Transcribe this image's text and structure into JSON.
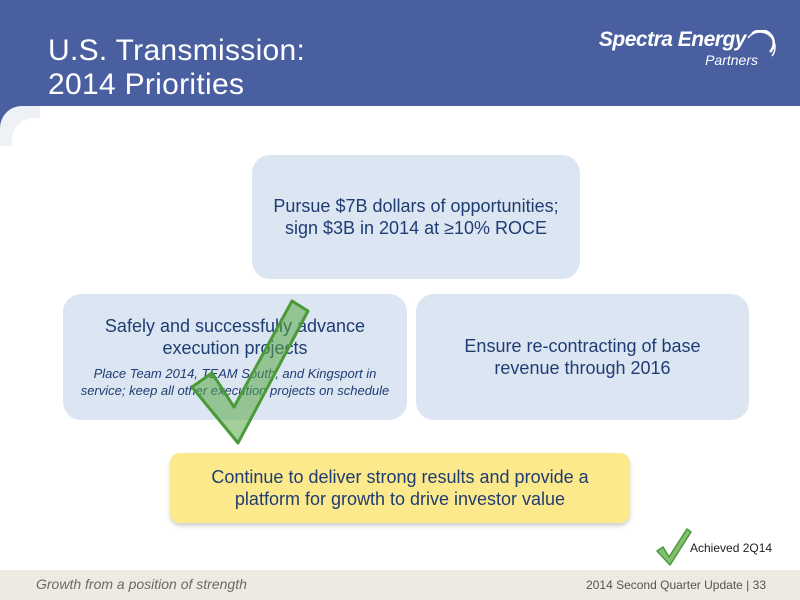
{
  "header": {
    "title_line1": "U.S. Transmission:",
    "title_line2": "2014 Priorities",
    "logo_main": "Spectra Energy",
    "logo_sub": "Partners"
  },
  "priorities": {
    "top": "Pursue $7B dollars of opportunities; sign $3B in 2014 at ≥10% ROCE",
    "left_main": "Safely and successfully advance execution projects",
    "left_sub": "Place Team 2014, TEAM South, and Kingsport in service; keep all other execution projects on schedule",
    "right": "Ensure re-contracting of base revenue through 2016",
    "bottom": "Continue to deliver strong results and provide a platform for growth to drive investor value"
  },
  "legend": {
    "achieved_label": "Achieved 2Q14",
    "icon": "checkmark-icon"
  },
  "footer": {
    "tagline": "Growth from a position of strength",
    "update_label": "2014 Second Quarter Update",
    "separator": "|",
    "page_number": "33"
  },
  "colors": {
    "header_blue": "#4a5fa0",
    "box_blue": "#dce6f2",
    "text_navy": "#1f3c73",
    "highlight_yellow": "#fbe98b",
    "check_green": "#5aa845"
  }
}
